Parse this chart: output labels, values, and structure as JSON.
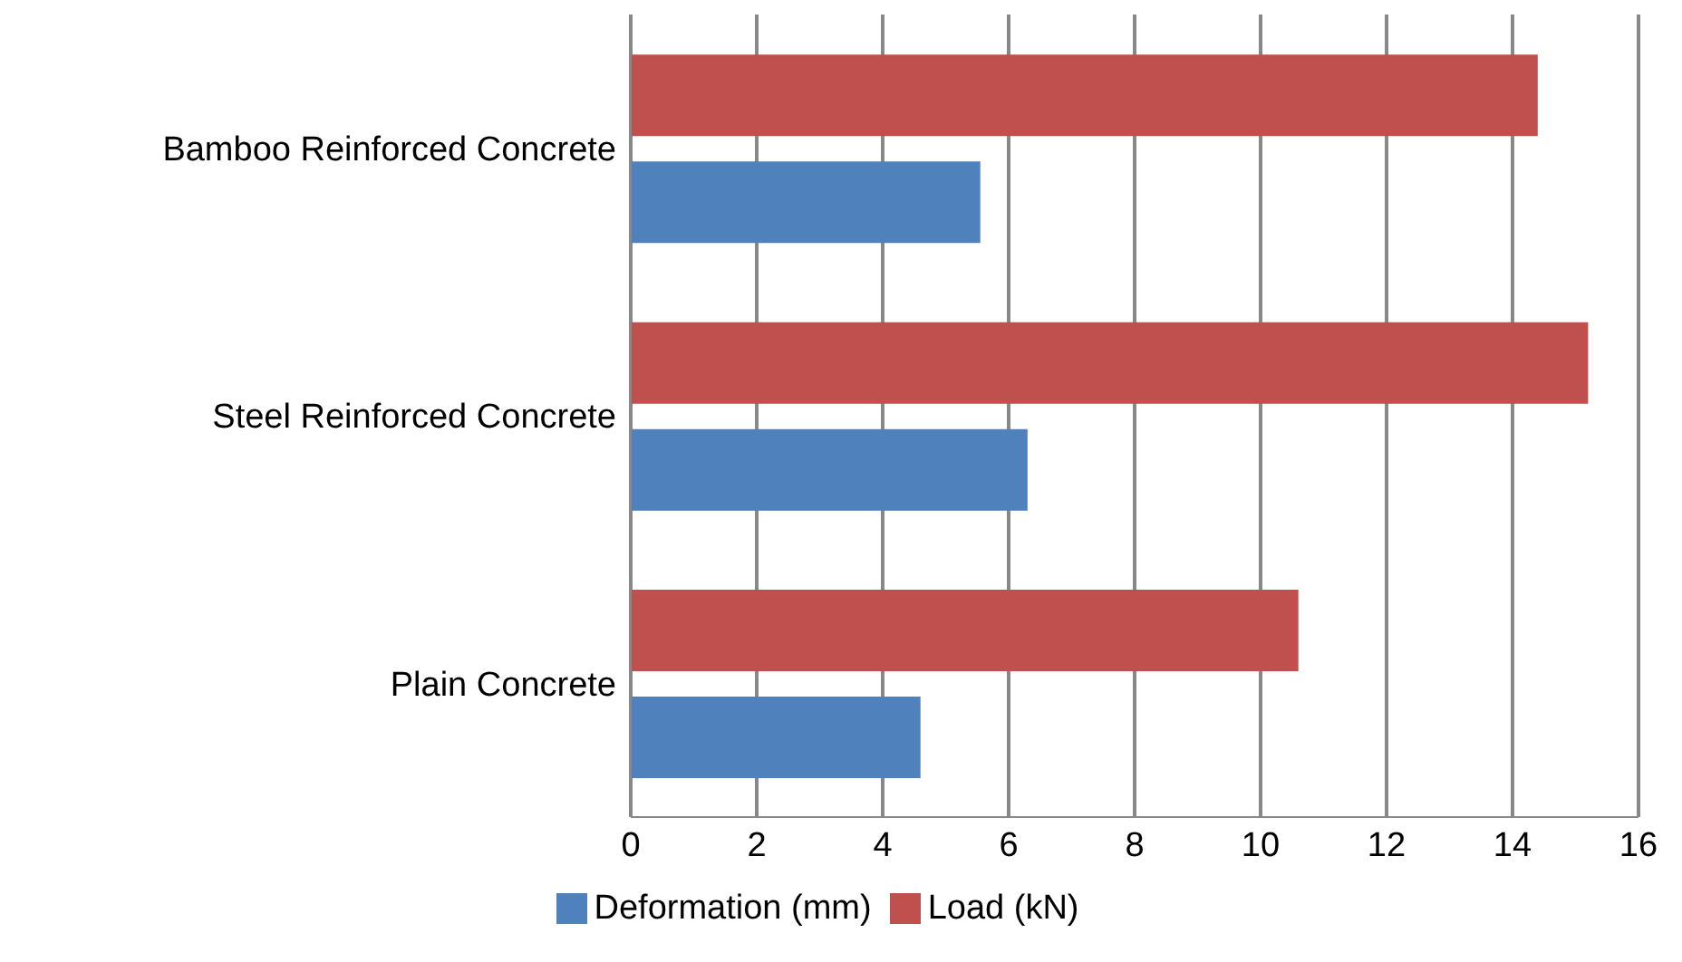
{
  "chart_data": {
    "type": "bar",
    "orientation": "horizontal",
    "categories": [
      "Bamboo Reinforced Concrete",
      "Steel Reinforced Concrete",
      "Plain Concrete"
    ],
    "series": [
      {
        "name": "Load (kN)",
        "color": "#c0504d",
        "values": [
          14.4,
          15.2,
          10.6
        ]
      },
      {
        "name": "Deformation (mm)",
        "color": "#4f81bd",
        "values": [
          5.55,
          6.3,
          4.6
        ]
      }
    ],
    "xlim": [
      0,
      16
    ],
    "xticks": [
      0,
      2,
      4,
      6,
      8,
      10,
      12,
      14,
      16
    ],
    "grid": "x",
    "legend": "bottom"
  }
}
